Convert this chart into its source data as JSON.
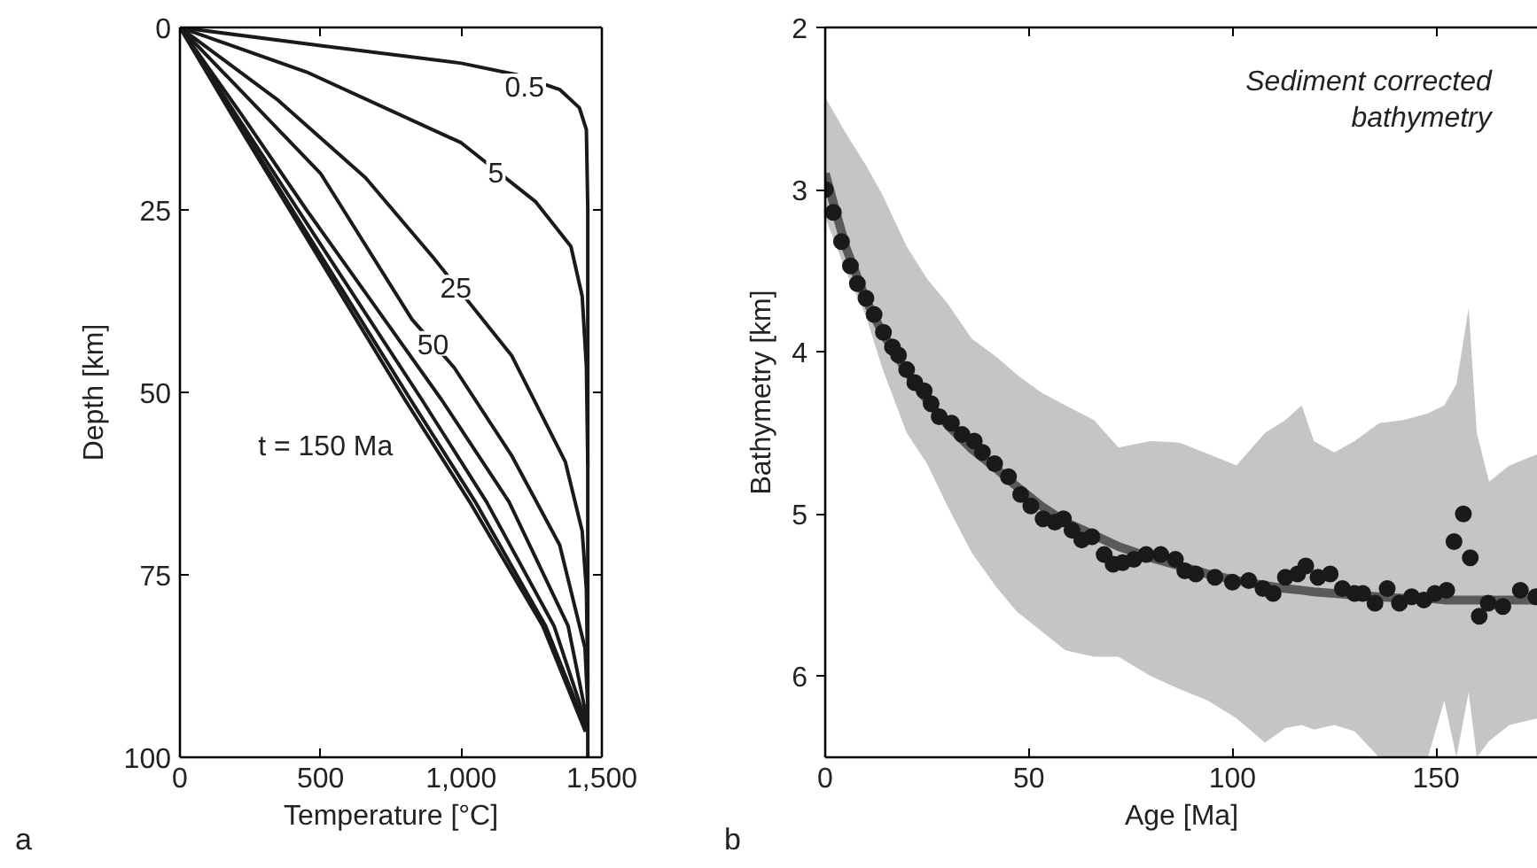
{
  "chart_data": [
    {
      "type": "line",
      "title": "a",
      "xlabel": "Temperature [°C]",
      "ylabel": "Depth [km]",
      "xlim": [
        0,
        1500
      ],
      "ylim": [
        100,
        0
      ],
      "xticks": [
        0,
        500,
        {
          "value": 1000,
          "label": "1,000"
        },
        {
          "value": 1500,
          "label": "1,500"
        }
      ],
      "yticks": [
        0,
        25,
        50,
        75,
        100
      ],
      "grid": false,
      "series": [
        {
          "color": "#1a1a1a",
          "x": [
            0,
            500,
            1000,
            1200,
            1350,
            1420,
            1445,
            1450,
            1450,
            1450
          ],
          "values": [
            0,
            2.5,
            4.9,
            6.5,
            8.5,
            11,
            14,
            25,
            95,
            100
          ]
        },
        {
          "color": "#1a1a1a",
          "x": [
            0,
            450,
            1000,
            1265,
            1390,
            1430,
            1445,
            1450
          ],
          "values": [
            0,
            6.1,
            15.8,
            23.9,
            30,
            36.8,
            46.5,
            60
          ]
        },
        {
          "color": "#1a1a1a",
          "x": [
            0,
            350,
            660,
            900,
            1180,
            1370,
            1430,
            1445,
            1450
          ],
          "values": [
            0,
            10,
            20.6,
            31.5,
            45,
            59.5,
            69,
            77,
            90
          ]
        },
        {
          "color": "#1a1a1a",
          "x": [
            0,
            250,
            500,
            825,
            975,
            1180,
            1350,
            1440,
            1450
          ],
          "values": [
            0,
            10,
            20,
            40,
            46.6,
            58.7,
            70.9,
            85,
            93
          ]
        },
        {
          "color": "#1a1a1a",
          "x": [
            0,
            220,
            450,
            690,
            930,
            1170,
            1380,
            1448
          ],
          "values": [
            0,
            12,
            25,
            38,
            51,
            65,
            82,
            95
          ]
        },
        {
          "color": "#1a1a1a",
          "x": [
            0,
            200,
            420,
            640,
            860,
            1090,
            1330,
            1446
          ],
          "values": [
            0,
            12,
            25,
            38,
            51,
            65,
            82,
            95.5
          ]
        },
        {
          "color": "#1a1a1a",
          "x": [
            0,
            190,
            400,
            610,
            820,
            1050,
            1300,
            1444
          ],
          "values": [
            0,
            12,
            25,
            38,
            51,
            65,
            82,
            96
          ]
        },
        {
          "color": "#1a1a1a",
          "x": [
            0,
            185,
            390,
            595,
            800,
            1030,
            1290,
            1442
          ],
          "values": [
            0,
            12,
            25,
            38,
            51,
            65,
            82,
            96.5
          ]
        }
      ],
      "annotations": [
        {
          "text": "0.5",
          "x": 1225,
          "y": 8
        },
        {
          "text": "5",
          "x": 1123,
          "y": 19.8
        },
        {
          "text": "25",
          "x": 981,
          "y": 35.6
        },
        {
          "text": "50",
          "x": 900,
          "y": 43.3
        },
        "t = 150 Ma"
      ]
    },
    {
      "type": "scatter",
      "title": "b",
      "xlabel": "Age [Ma]",
      "ylabel": "Bathymetry [km]",
      "xlim": [
        0,
        175
      ],
      "ylim": [
        6.5,
        2
      ],
      "xticks": [
        0,
        50,
        100,
        150
      ],
      "yticks": [
        2,
        3,
        4,
        5,
        6
      ],
      "grid": false,
      "marker": "circle",
      "series": [
        {
          "type": "line",
          "color": "#5a5a5a",
          "marker": "none",
          "x": [
            0,
            5,
            10,
            14,
            20,
            25,
            30,
            36,
            42,
            47,
            53,
            59,
            66,
            72,
            80,
            87,
            94,
            101,
            108,
            113,
            117,
            120,
            125,
            130,
            136,
            142,
            148,
            152,
            155,
            158,
            160,
            163,
            168,
            175
          ],
          "values": [
            2.9,
            3.35,
            3.68,
            3.88,
            4.12,
            4.3,
            4.45,
            4.6,
            4.72,
            4.83,
            4.95,
            5.05,
            5.13,
            5.2,
            5.27,
            5.32,
            5.37,
            5.41,
            5.44,
            5.46,
            5.47,
            5.48,
            5.49,
            5.5,
            5.51,
            5.52,
            5.52,
            5.53,
            5.53,
            5.53,
            5.53,
            5.53,
            5.53,
            5.53
          ],
          "upper": [
            2.43,
            2.65,
            2.85,
            3.03,
            3.35,
            3.55,
            3.7,
            3.92,
            4.03,
            4.14,
            4.25,
            4.33,
            4.42,
            4.59,
            4.55,
            4.56,
            4.63,
            4.7,
            4.5,
            4.42,
            4.33,
            4.55,
            4.62,
            4.55,
            4.44,
            4.42,
            4.38,
            4.33,
            4.2,
            3.73,
            4.5,
            4.8,
            4.7,
            4.63
          ],
          "lower": [
            3.17,
            3.5,
            3.78,
            4.1,
            4.5,
            4.69,
            4.95,
            5.24,
            5.45,
            5.6,
            5.72,
            5.84,
            5.88,
            5.88,
            6.0,
            6.08,
            6.15,
            6.26,
            6.41,
            6.32,
            6.3,
            6.33,
            6.3,
            6.34,
            6.5,
            6.5,
            6.5,
            6.15,
            6.5,
            6.1,
            6.5,
            6.4,
            6.3,
            6.26
          ]
        },
        {
          "type": "scatter",
          "color": "#1a1a1a",
          "x": [
            0,
            2,
            4,
            6.2,
            7.9,
            10,
            12,
            14.3,
            16.5,
            18,
            20,
            22,
            24.3,
            26,
            28,
            31,
            33.6,
            36.6,
            38.6,
            41.6,
            45,
            48,
            50.5,
            53.5,
            56.4,
            58.5,
            60.6,
            63,
            65.5,
            68.5,
            70.7,
            73,
            75.8,
            78.8,
            82.4,
            86,
            88.3,
            91,
            95.7,
            100,
            104,
            107.5,
            110,
            113,
            116,
            118,
            121,
            124,
            127,
            130,
            132,
            135,
            138,
            141,
            144,
            147,
            149.7,
            152.6,
            154.4,
            156.7,
            158.4,
            160.6,
            162.8,
            166.4,
            170.7,
            174.5
          ],
          "values": [
            3.0,
            3.14,
            3.32,
            3.47,
            3.58,
            3.67,
            3.77,
            3.88,
            3.97,
            4.02,
            4.11,
            4.19,
            4.24,
            4.32,
            4.4,
            4.44,
            4.51,
            4.55,
            4.62,
            4.69,
            4.77,
            4.88,
            4.95,
            5.03,
            5.05,
            5.03,
            5.1,
            5.16,
            5.14,
            5.25,
            5.31,
            5.3,
            5.28,
            5.25,
            5.25,
            5.28,
            5.35,
            5.37,
            5.39,
            5.42,
            5.41,
            5.46,
            5.49,
            5.39,
            5.37,
            5.32,
            5.39,
            5.37,
            5.46,
            5.49,
            5.49,
            5.55,
            5.46,
            5.55,
            5.51,
            5.53,
            5.49,
            5.47,
            5.17,
            5.0,
            5.27,
            5.63,
            5.55,
            5.57,
            5.47,
            5.51
          ]
        }
      ],
      "annotations": [
        "Sediment corrected bathymetry"
      ]
    }
  ]
}
